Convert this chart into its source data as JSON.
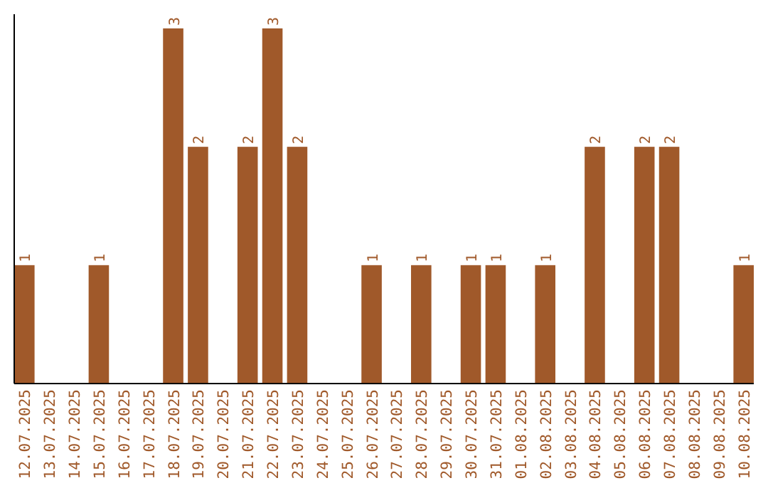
{
  "chart_data": {
    "type": "bar",
    "categories": [
      "12.07.2025",
      "13.07.2025",
      "14.07.2025",
      "15.07.2025",
      "16.07.2025",
      "17.07.2025",
      "18.07.2025",
      "19.07.2025",
      "20.07.2025",
      "21.07.2025",
      "22.07.2025",
      "23.07.2025",
      "24.07.2025",
      "25.07.2025",
      "26.07.2025",
      "27.07.2025",
      "28.07.2025",
      "29.07.2025",
      "30.07.2025",
      "31.07.2025",
      "01.08.2025",
      "02.08.2025",
      "03.08.2025",
      "04.08.2025",
      "05.08.2025",
      "06.08.2025",
      "07.08.2025",
      "08.08.2025",
      "09.08.2025",
      "10.08.2025"
    ],
    "values": [
      1,
      0,
      0,
      1,
      0,
      0,
      3,
      2,
      0,
      2,
      3,
      2,
      0,
      0,
      1,
      0,
      1,
      0,
      1,
      1,
      0,
      1,
      0,
      2,
      0,
      2,
      2,
      0,
      0,
      1
    ],
    "value_labels": [
      "1",
      null,
      null,
      "1",
      null,
      null,
      "3",
      "2",
      null,
      "2",
      "3",
      "2",
      null,
      null,
      "1",
      null,
      "1",
      null,
      "1",
      "1",
      null,
      "1",
      null,
      "2",
      null,
      "2",
      "2",
      null,
      null,
      "1"
    ],
    "color": "#a0592a"
  }
}
